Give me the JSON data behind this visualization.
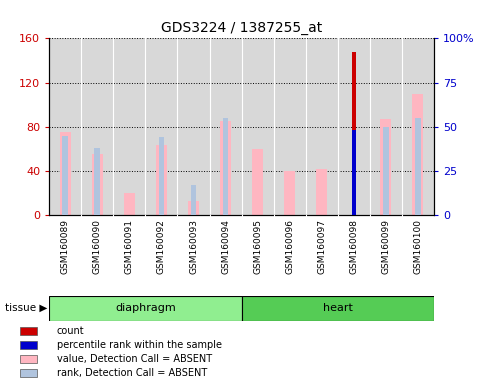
{
  "title": "GDS3224 / 1387255_at",
  "samples": [
    "GSM160089",
    "GSM160090",
    "GSM160091",
    "GSM160092",
    "GSM160093",
    "GSM160094",
    "GSM160095",
    "GSM160096",
    "GSM160097",
    "GSM160098",
    "GSM160099",
    "GSM160100"
  ],
  "diaphragm_count": 6,
  "heart_count": 6,
  "diaphragm_color": "#90EE90",
  "heart_color": "#55CC55",
  "ylim_left": [
    0,
    160
  ],
  "ylim_right": [
    0,
    100
  ],
  "yticks_left": [
    0,
    40,
    80,
    120,
    160
  ],
  "ytick_labels_left": [
    "0",
    "40",
    "80",
    "120",
    "160"
  ],
  "yticks_right": [
    0,
    25,
    50,
    75,
    100
  ],
  "ytick_labels_right": [
    "0",
    "25",
    "50",
    "75",
    "100%"
  ],
  "value_bars": [
    75,
    55,
    20,
    63,
    13,
    85,
    60,
    40,
    42,
    0,
    87,
    110
  ],
  "rank_bars_pct": [
    45,
    38,
    0,
    44,
    17,
    55,
    0,
    0,
    0,
    0,
    50,
    55
  ],
  "count_bars": [
    0,
    0,
    0,
    0,
    0,
    0,
    0,
    0,
    0,
    148,
    0,
    0
  ],
  "percentile_pct": [
    0,
    0,
    0,
    0,
    0,
    0,
    0,
    0,
    0,
    48,
    0,
    0
  ],
  "color_count": "#CC0000",
  "color_percentile": "#0000CC",
  "color_value_absent": "#FFB6C1",
  "color_rank_absent": "#B0C4DE",
  "bg_color": "#D8D8D8",
  "legend_items": [
    {
      "color": "#CC0000",
      "label": "count"
    },
    {
      "color": "#0000CC",
      "label": "percentile rank within the sample"
    },
    {
      "color": "#FFB6C1",
      "label": "value, Detection Call = ABSENT"
    },
    {
      "color": "#B0C4DE",
      "label": "rank, Detection Call = ABSENT"
    }
  ]
}
